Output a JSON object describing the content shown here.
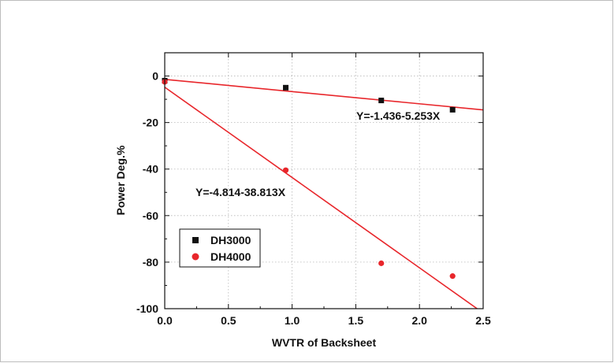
{
  "chart_data": {
    "type": "scatter",
    "xlabel": "WVTR of Backsheet",
    "ylabel": "Power Deg.%",
    "xlim": [
      0.0,
      2.5
    ],
    "ylim": [
      -100,
      10
    ],
    "x_ticks": [
      0.0,
      0.5,
      1.0,
      1.5,
      2.0,
      2.5
    ],
    "x_tick_labels": [
      "0.0",
      "0.5",
      "1.0",
      "1.5",
      "2.0",
      "2.5"
    ],
    "y_ticks": [
      0,
      -20,
      -40,
      -60,
      -80,
      -100
    ],
    "y_tick_labels": [
      "0",
      "-20",
      "-40",
      "-60",
      "-80",
      "-100"
    ],
    "grid": true,
    "legend_position": "bottom-left",
    "series": [
      {
        "name": "DH3000",
        "marker": "square",
        "color": "#111111",
        "points": [
          [
            0.0,
            -2.0
          ],
          [
            0.95,
            -5.0
          ],
          [
            1.7,
            -10.5
          ],
          [
            2.26,
            -14.5
          ]
        ],
        "fit": {
          "intercept": -1.436,
          "slope": -5.253,
          "label": "Y=-1.436-5.253X"
        }
      },
      {
        "name": "DH4000",
        "marker": "circle",
        "color": "#e8262b",
        "points": [
          [
            0.0,
            -2.5
          ],
          [
            0.95,
            -40.5
          ],
          [
            1.7,
            -80.5
          ],
          [
            2.26,
            -86.0
          ]
        ],
        "fit": {
          "intercept": -4.814,
          "slope": -38.813,
          "label": "Y=-4.814-38.813X"
        }
      }
    ],
    "fit_line_color": "#e8262b"
  }
}
